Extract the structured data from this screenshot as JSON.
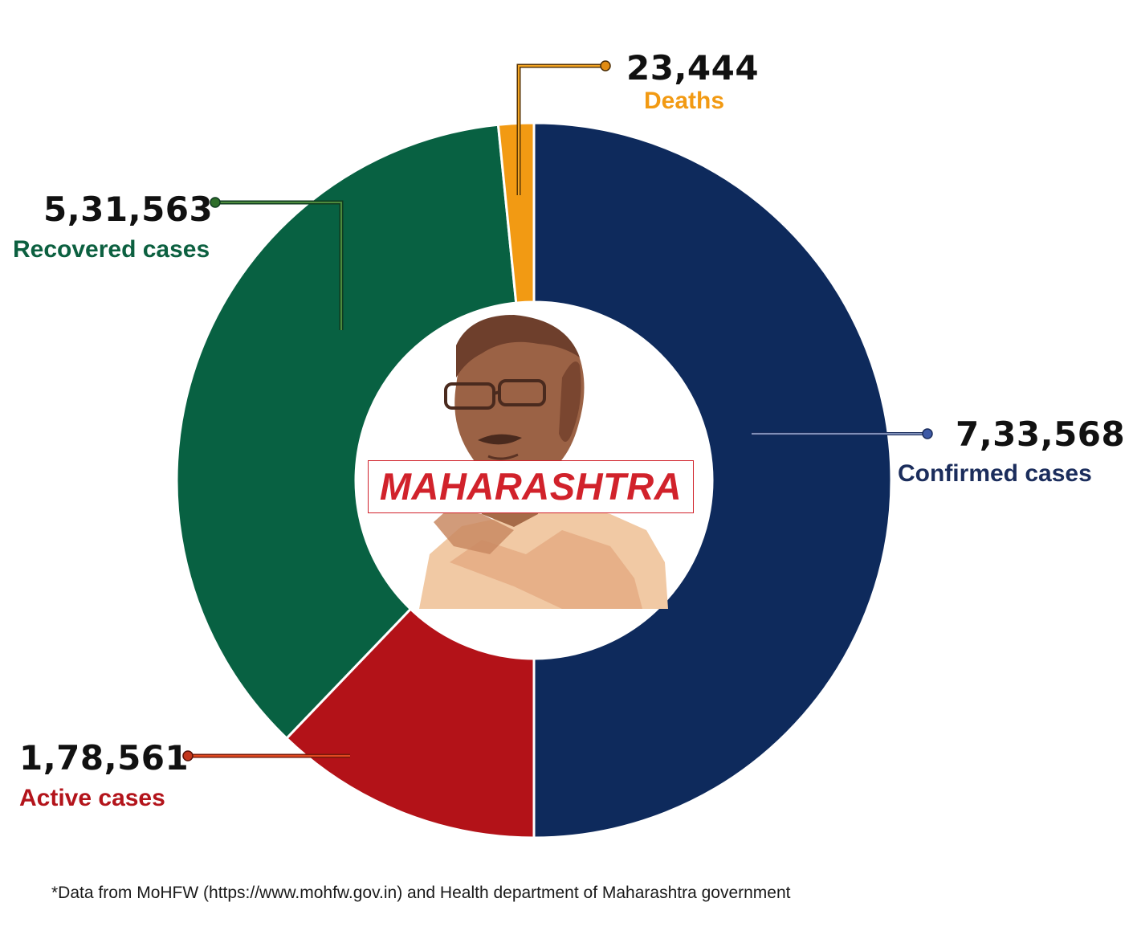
{
  "chart_data": {
    "type": "pie",
    "title": "",
    "center_label": "MAHARASHTRA",
    "slices": [
      {
        "key": "confirmed",
        "label": "Confirmed cases",
        "value_text": "7,33,568",
        "value": 733568,
        "color": "#0e2a5c"
      },
      {
        "key": "active",
        "label": "Active cases",
        "value_text": "1,78,561",
        "value": 178561,
        "color": "#b31218"
      },
      {
        "key": "recovered",
        "label": "Recovered cases",
        "value_text": "5,31,563",
        "value": 531563,
        "color": "#086142"
      },
      {
        "key": "deaths",
        "label": "Deaths",
        "value_text": "23,444",
        "value": 23444,
        "color": "#f29a13"
      }
    ]
  },
  "labels": {
    "confirmed": {
      "value": "7,33,568",
      "name": "Confirmed cases",
      "color": "#1b2d5c"
    },
    "active": {
      "value": "1,78,561",
      "name": "Active cases",
      "color": "#b3141b"
    },
    "recovered": {
      "value": "5,31,563",
      "name": "Recovered cases",
      "color": "#0c6040"
    },
    "deaths": {
      "value": "23,444",
      "name": "Deaths",
      "color": "#f29a13"
    }
  },
  "center": {
    "title": "MAHARASHTRA"
  },
  "footnote": "*Data from MoHFW (https://www.mohfw.gov.in) and Health department of Maharashtra government"
}
